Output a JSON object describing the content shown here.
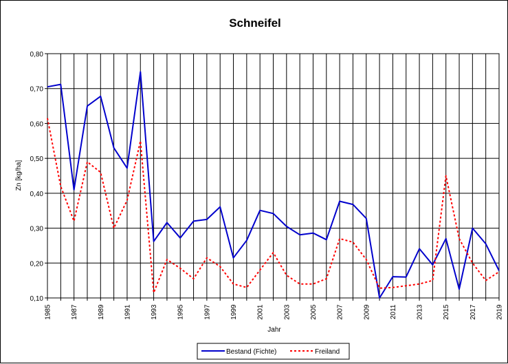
{
  "chart_data": {
    "type": "line",
    "title": "Schneifel",
    "xlabel": "Jahr",
    "ylabel": "Zn [kg/ha]",
    "ylim": [
      0.1,
      0.8
    ],
    "yticks": [
      "0,10",
      "0,20",
      "0,30",
      "0,40",
      "0,50",
      "0,60",
      "0,70",
      "0,80"
    ],
    "xlim": [
      1985,
      2019
    ],
    "xticks": [
      "1985",
      "1987",
      "1989",
      "1991",
      "1993",
      "1995",
      "1997",
      "1999",
      "2001",
      "2003",
      "2005",
      "2007",
      "2009",
      "2011",
      "2013",
      "2015",
      "2017",
      "2019"
    ],
    "grid": true,
    "legend": "bottom-center",
    "x": [
      1985,
      1986,
      1987,
      1988,
      1989,
      1990,
      1991,
      1992,
      1993,
      1994,
      1995,
      1996,
      1997,
      1998,
      1999,
      2000,
      2001,
      2002,
      2003,
      2004,
      2005,
      2006,
      2007,
      2008,
      2009,
      2010,
      2011,
      2012,
      2013,
      2014,
      2015,
      2016,
      2017,
      2018,
      2019
    ],
    "series": [
      {
        "name": "Bestand (Fichte)",
        "color": "#0000cc",
        "style": "solid",
        "values": [
          0.705,
          0.712,
          0.41,
          0.65,
          0.678,
          0.53,
          0.472,
          0.748,
          0.262,
          0.316,
          0.272,
          0.32,
          0.325,
          0.361,
          0.215,
          0.265,
          0.351,
          0.342,
          0.305,
          0.281,
          0.286,
          0.267,
          0.377,
          0.368,
          0.328,
          0.1,
          0.161,
          0.16,
          0.241,
          0.195,
          0.27,
          0.125,
          0.3,
          0.255,
          0.178
        ]
      },
      {
        "name": "Freiland",
        "color": "#ff0000",
        "style": "dotted",
        "values": [
          0.615,
          0.42,
          0.32,
          0.49,
          0.46,
          0.3,
          0.38,
          0.55,
          0.115,
          0.21,
          0.185,
          0.155,
          0.215,
          0.19,
          0.14,
          0.13,
          0.18,
          0.23,
          0.165,
          0.14,
          0.14,
          0.155,
          0.27,
          0.26,
          0.21,
          0.128,
          0.13,
          0.135,
          0.14,
          0.15,
          0.45,
          0.27,
          0.2,
          0.15,
          0.175
        ]
      }
    ]
  }
}
